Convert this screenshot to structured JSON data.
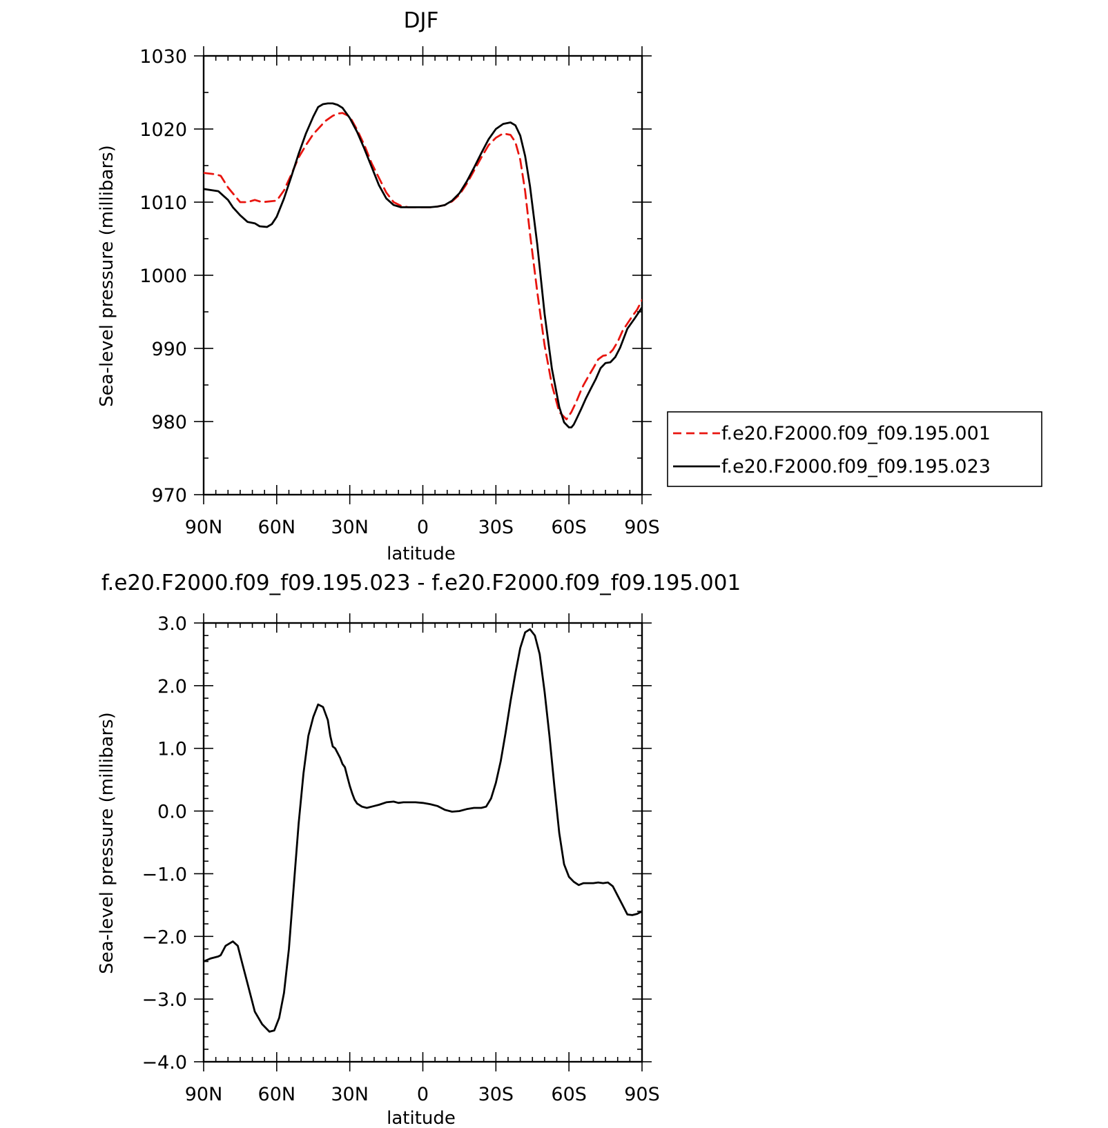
{
  "chart_data": [
    {
      "type": "line",
      "title": "DJF",
      "xlabel": "latitude",
      "ylabel": "Sea-level pressure (millibars)",
      "xlim": [
        90,
        -90
      ],
      "ylim": [
        970,
        1030
      ],
      "xticks": [
        {
          "value": 90,
          "label": "90N"
        },
        {
          "value": 60,
          "label": "60N"
        },
        {
          "value": 30,
          "label": "30N"
        },
        {
          "value": 0,
          "label": "0"
        },
        {
          "value": -30,
          "label": "30S"
        },
        {
          "value": -60,
          "label": "60S"
        },
        {
          "value": -90,
          "label": "90S"
        }
      ],
      "yticks": [
        {
          "value": 1030,
          "label": "1030"
        },
        {
          "value": 1020,
          "label": "1020"
        },
        {
          "value": 1010,
          "label": "1010"
        },
        {
          "value": 1000,
          "label": "1000"
        },
        {
          "value": 990,
          "label": "990"
        },
        {
          "value": 980,
          "label": "980"
        },
        {
          "value": 970,
          "label": "970"
        }
      ],
      "legend": "right",
      "series": [
        {
          "name": "f.e20.F2000.f09_f09.195.001",
          "color": "#e8150f",
          "dash": "dashed",
          "x": [
            90,
            85,
            83,
            80,
            75,
            72,
            69,
            66,
            60,
            57,
            54,
            51,
            48,
            45,
            40,
            37,
            35,
            33,
            30,
            27,
            24,
            21,
            15,
            12,
            9,
            6,
            3,
            0,
            -3,
            -6,
            -9,
            -12,
            -15,
            -18,
            -21,
            -24,
            -27,
            -30,
            -33,
            -36,
            -38,
            -40,
            -42,
            -44,
            -47,
            -50,
            -53,
            -56,
            -59,
            -61,
            -63,
            -65,
            -66,
            -68,
            -70,
            -72,
            -74,
            -76,
            -78,
            -80,
            -82,
            -84,
            -86,
            -88,
            -90
          ],
          "values": [
            1014,
            1013.8,
            1013.6,
            1012,
            1010,
            1010,
            1010.3,
            1010,
            1010.2,
            1011.6,
            1013.8,
            1016.1,
            1017.8,
            1019.3,
            1021.1,
            1021.8,
            1022.1,
            1022.2,
            1021.7,
            1019.9,
            1017.8,
            1015.3,
            1011.3,
            1010,
            1009.5,
            1009.3,
            1009.3,
            1009.3,
            1009.3,
            1009.4,
            1009.6,
            1010.1,
            1011,
            1012.5,
            1014.3,
            1016.1,
            1017.8,
            1018.8,
            1019.4,
            1019.2,
            1018.2,
            1015.8,
            1011.5,
            1005.7,
            997.7,
            990.4,
            985,
            981.3,
            980.3,
            981.3,
            982.7,
            984.3,
            985,
            986.2,
            987.3,
            988.5,
            989,
            989.1,
            989.8,
            990.9,
            992.4,
            993.4,
            994.4,
            995.3,
            996.6
          ]
        },
        {
          "name": "f.e20.F2000.f09_f09.195.023",
          "color": "#000000",
          "dash": "solid",
          "x": [
            90,
            84,
            80,
            78,
            75,
            72,
            69,
            67,
            64,
            62,
            60,
            57,
            54,
            51,
            48,
            45,
            43,
            41,
            39,
            37,
            35,
            33,
            30,
            27,
            24,
            21,
            18,
            15,
            12,
            9,
            6,
            3,
            0,
            -3,
            -6,
            -9,
            -12,
            -15,
            -18,
            -21,
            -24,
            -27,
            -30,
            -33,
            -36,
            -38,
            -40,
            -42,
            -44,
            -47,
            -50,
            -53,
            -56,
            -58,
            -60,
            -61,
            -62,
            -63,
            -65,
            -67,
            -69,
            -71,
            -73,
            -75,
            -77,
            -79,
            -81,
            -84,
            -87,
            -90
          ],
          "values": [
            1011.8,
            1011.5,
            1010.3,
            1009.3,
            1008.2,
            1007.3,
            1007.1,
            1006.7,
            1006.6,
            1007,
            1008,
            1010.5,
            1013.5,
            1016.6,
            1019.4,
            1021.7,
            1023,
            1023.4,
            1023.5,
            1023.5,
            1023.3,
            1022.9,
            1021.5,
            1019.6,
            1017.3,
            1014.8,
            1012.3,
            1010.5,
            1009.6,
            1009.3,
            1009.3,
            1009.3,
            1009.3,
            1009.3,
            1009.4,
            1009.6,
            1010.2,
            1011.2,
            1012.8,
            1014.7,
            1016.7,
            1018.6,
            1020,
            1020.7,
            1020.9,
            1020.5,
            1019.1,
            1016.3,
            1012.2,
            1004.2,
            994.7,
            987.2,
            982,
            979.9,
            979.2,
            979.2,
            979.6,
            980.3,
            981.7,
            983.2,
            984.5,
            985.8,
            987.3,
            988,
            988.1,
            988.8,
            990.1,
            992.7,
            994.1,
            995.6
          ]
        }
      ]
    },
    {
      "type": "line",
      "title": "f.e20.F2000.f09_f09.195.023 - f.e20.F2000.f09_f09.195.001",
      "xlabel": "latitude",
      "ylabel": "Sea-level pressure (millibars)",
      "xlim": [
        90,
        -90
      ],
      "ylim": [
        -4.0,
        3.0
      ],
      "xticks": [
        {
          "value": 90,
          "label": "90N"
        },
        {
          "value": 60,
          "label": "60N"
        },
        {
          "value": 30,
          "label": "30N"
        },
        {
          "value": 0,
          "label": "0"
        },
        {
          "value": -30,
          "label": "30S"
        },
        {
          "value": -60,
          "label": "60S"
        },
        {
          "value": -90,
          "label": "90S"
        }
      ],
      "yticks": [
        {
          "value": 3.0,
          "label": "3.0"
        },
        {
          "value": 2.0,
          "label": "2.0"
        },
        {
          "value": 1.0,
          "label": "1.0"
        },
        {
          "value": 0.0,
          "label": "0.0"
        },
        {
          "value": -1.0,
          "label": "-1.0"
        },
        {
          "value": -2.0,
          "label": "-2.0"
        },
        {
          "value": -3.0,
          "label": "-3.0"
        },
        {
          "value": -4.0,
          "label": "-4.0"
        }
      ],
      "series": [
        {
          "color": "#000000",
          "dash": "solid",
          "x": [
            90,
            87,
            84,
            83,
            81,
            78,
            76,
            74,
            72,
            69,
            66,
            63,
            61,
            59,
            57,
            55,
            53,
            51,
            49,
            47,
            45,
            43,
            41,
            39,
            38,
            37,
            36,
            34,
            33,
            32,
            31,
            30,
            29,
            28,
            27,
            25,
            23,
            20,
            18,
            15,
            12,
            10,
            8,
            6,
            3,
            0,
            -3,
            -6,
            -9,
            -12,
            -15,
            -18,
            -21,
            -24,
            -26,
            -28,
            -30,
            -32,
            -34,
            -36,
            -38,
            -40,
            -42,
            -44,
            -46,
            -48,
            -50,
            -52,
            -54,
            -56,
            -58,
            -60,
            -62,
            -64,
            -66,
            -68,
            -70,
            -72,
            -74,
            -76,
            -78,
            -80,
            -82,
            -84,
            -86,
            -88,
            -90
          ],
          "values": [
            -2.4,
            -2.35,
            -2.32,
            -2.3,
            -2.15,
            -2.08,
            -2.15,
            -2.45,
            -2.75,
            -3.2,
            -3.4,
            -3.52,
            -3.5,
            -3.3,
            -2.9,
            -2.2,
            -1.2,
            -0.2,
            0.6,
            1.2,
            1.5,
            1.7,
            1.66,
            1.45,
            1.2,
            1.03,
            1.0,
            0.85,
            0.75,
            0.7,
            0.55,
            0.4,
            0.28,
            0.18,
            0.12,
            0.07,
            0.05,
            0.08,
            0.1,
            0.14,
            0.15,
            0.13,
            0.14,
            0.14,
            0.14,
            0.13,
            0.11,
            0.08,
            0.02,
            -0.01,
            0.0,
            0.03,
            0.05,
            0.05,
            0.07,
            0.2,
            0.45,
            0.8,
            1.25,
            1.75,
            2.2,
            2.6,
            2.85,
            2.9,
            2.8,
            2.5,
            1.9,
            1.2,
            0.4,
            -0.35,
            -0.85,
            -1.05,
            -1.13,
            -1.18,
            -1.15,
            -1.15,
            -1.15,
            -1.14,
            -1.15,
            -1.14,
            -1.2,
            -1.35,
            -1.5,
            -1.65,
            -1.66,
            -1.64,
            -1.6
          ]
        }
      ]
    }
  ]
}
